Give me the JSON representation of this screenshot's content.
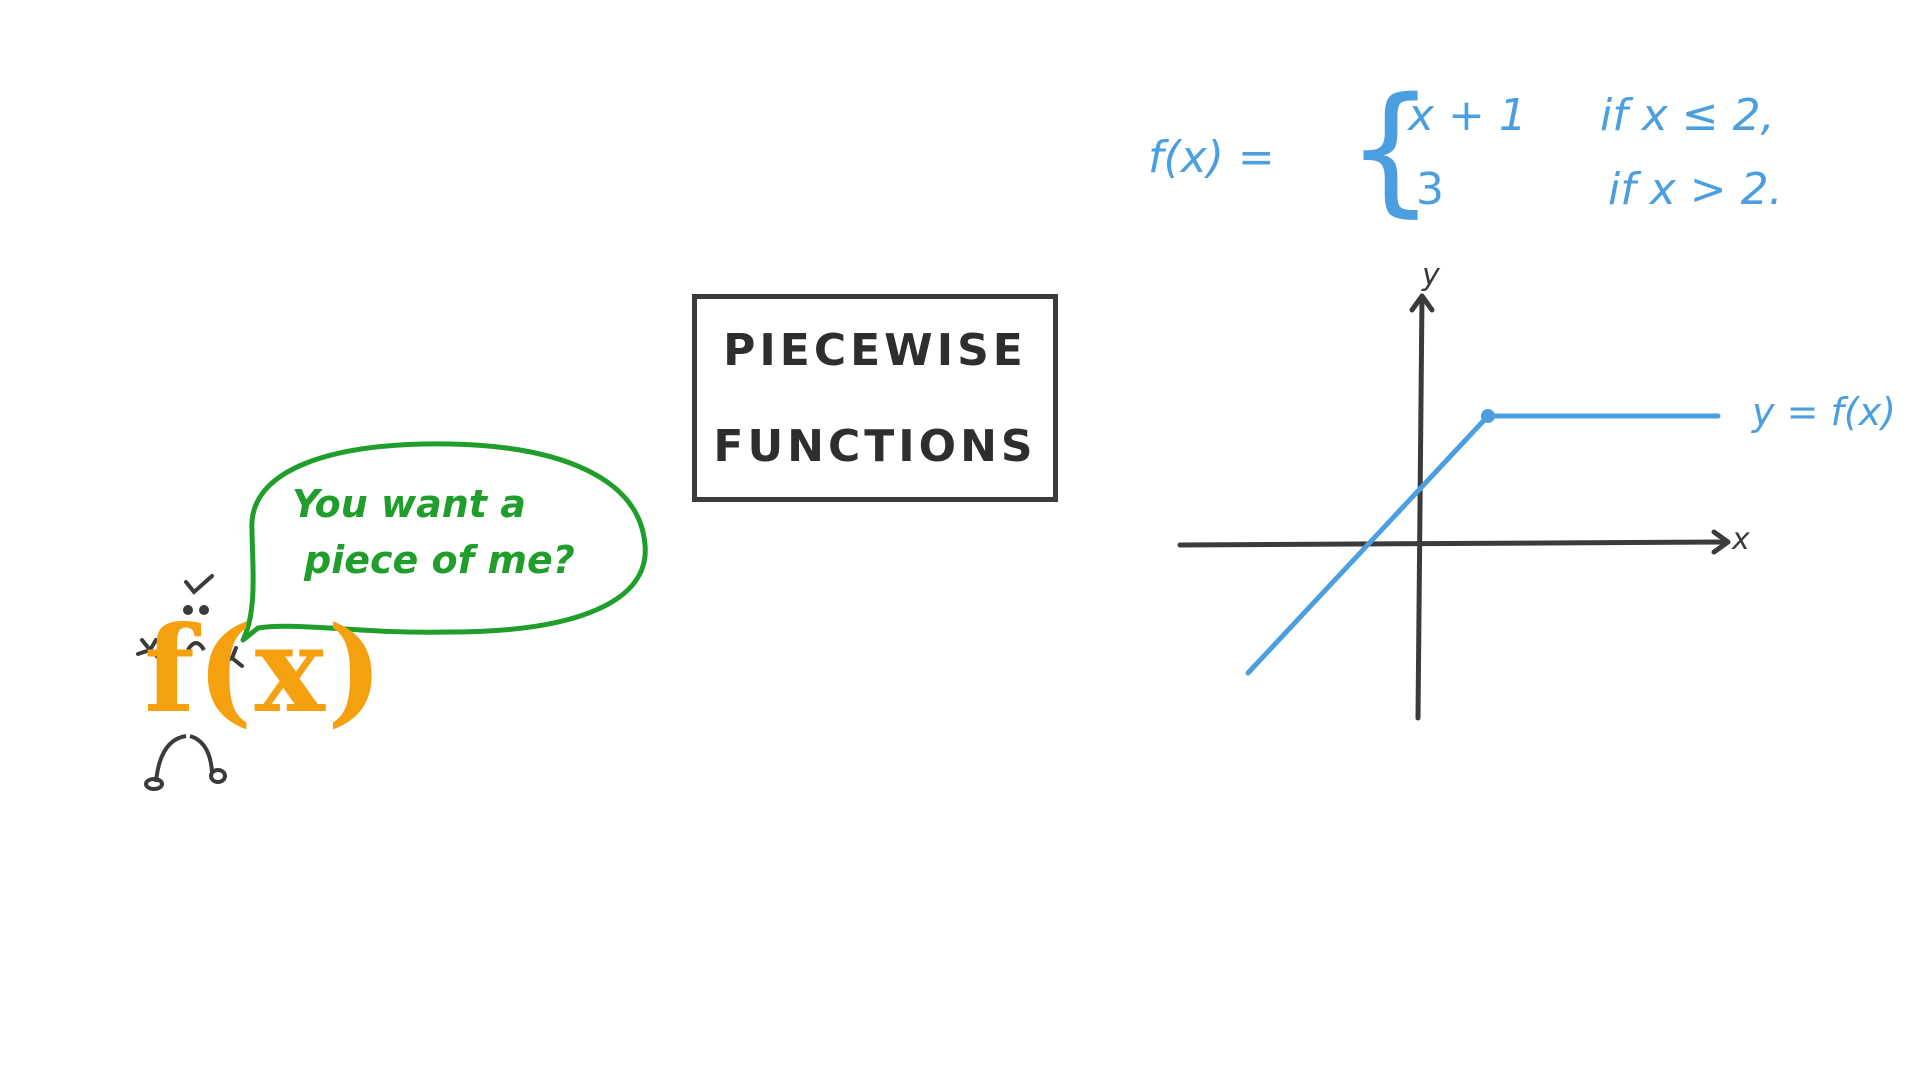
{
  "title": {
    "line1": "PIECEWISE",
    "line2": "FUNCTIONS"
  },
  "formula": {
    "lhs": "f(x) =",
    "brace": "{",
    "case1_expr": "x + 1",
    "case1_cond": "if  x ≤ 2,",
    "case2_expr": "3",
    "case2_cond": "if  x > 2."
  },
  "graph": {
    "x_axis_label": "x",
    "y_axis_label": "y",
    "curve_label": "y = f(x)"
  },
  "speech_bubble": {
    "line1": "You want a",
    "line2": "piece of me?"
  },
  "mascot": {
    "text": "f(x)"
  },
  "colors": {
    "formula": "#4b9fe1",
    "speech": "#1f9e2b",
    "mascot": "#f5a00e",
    "ink": "#3b3b3b"
  }
}
